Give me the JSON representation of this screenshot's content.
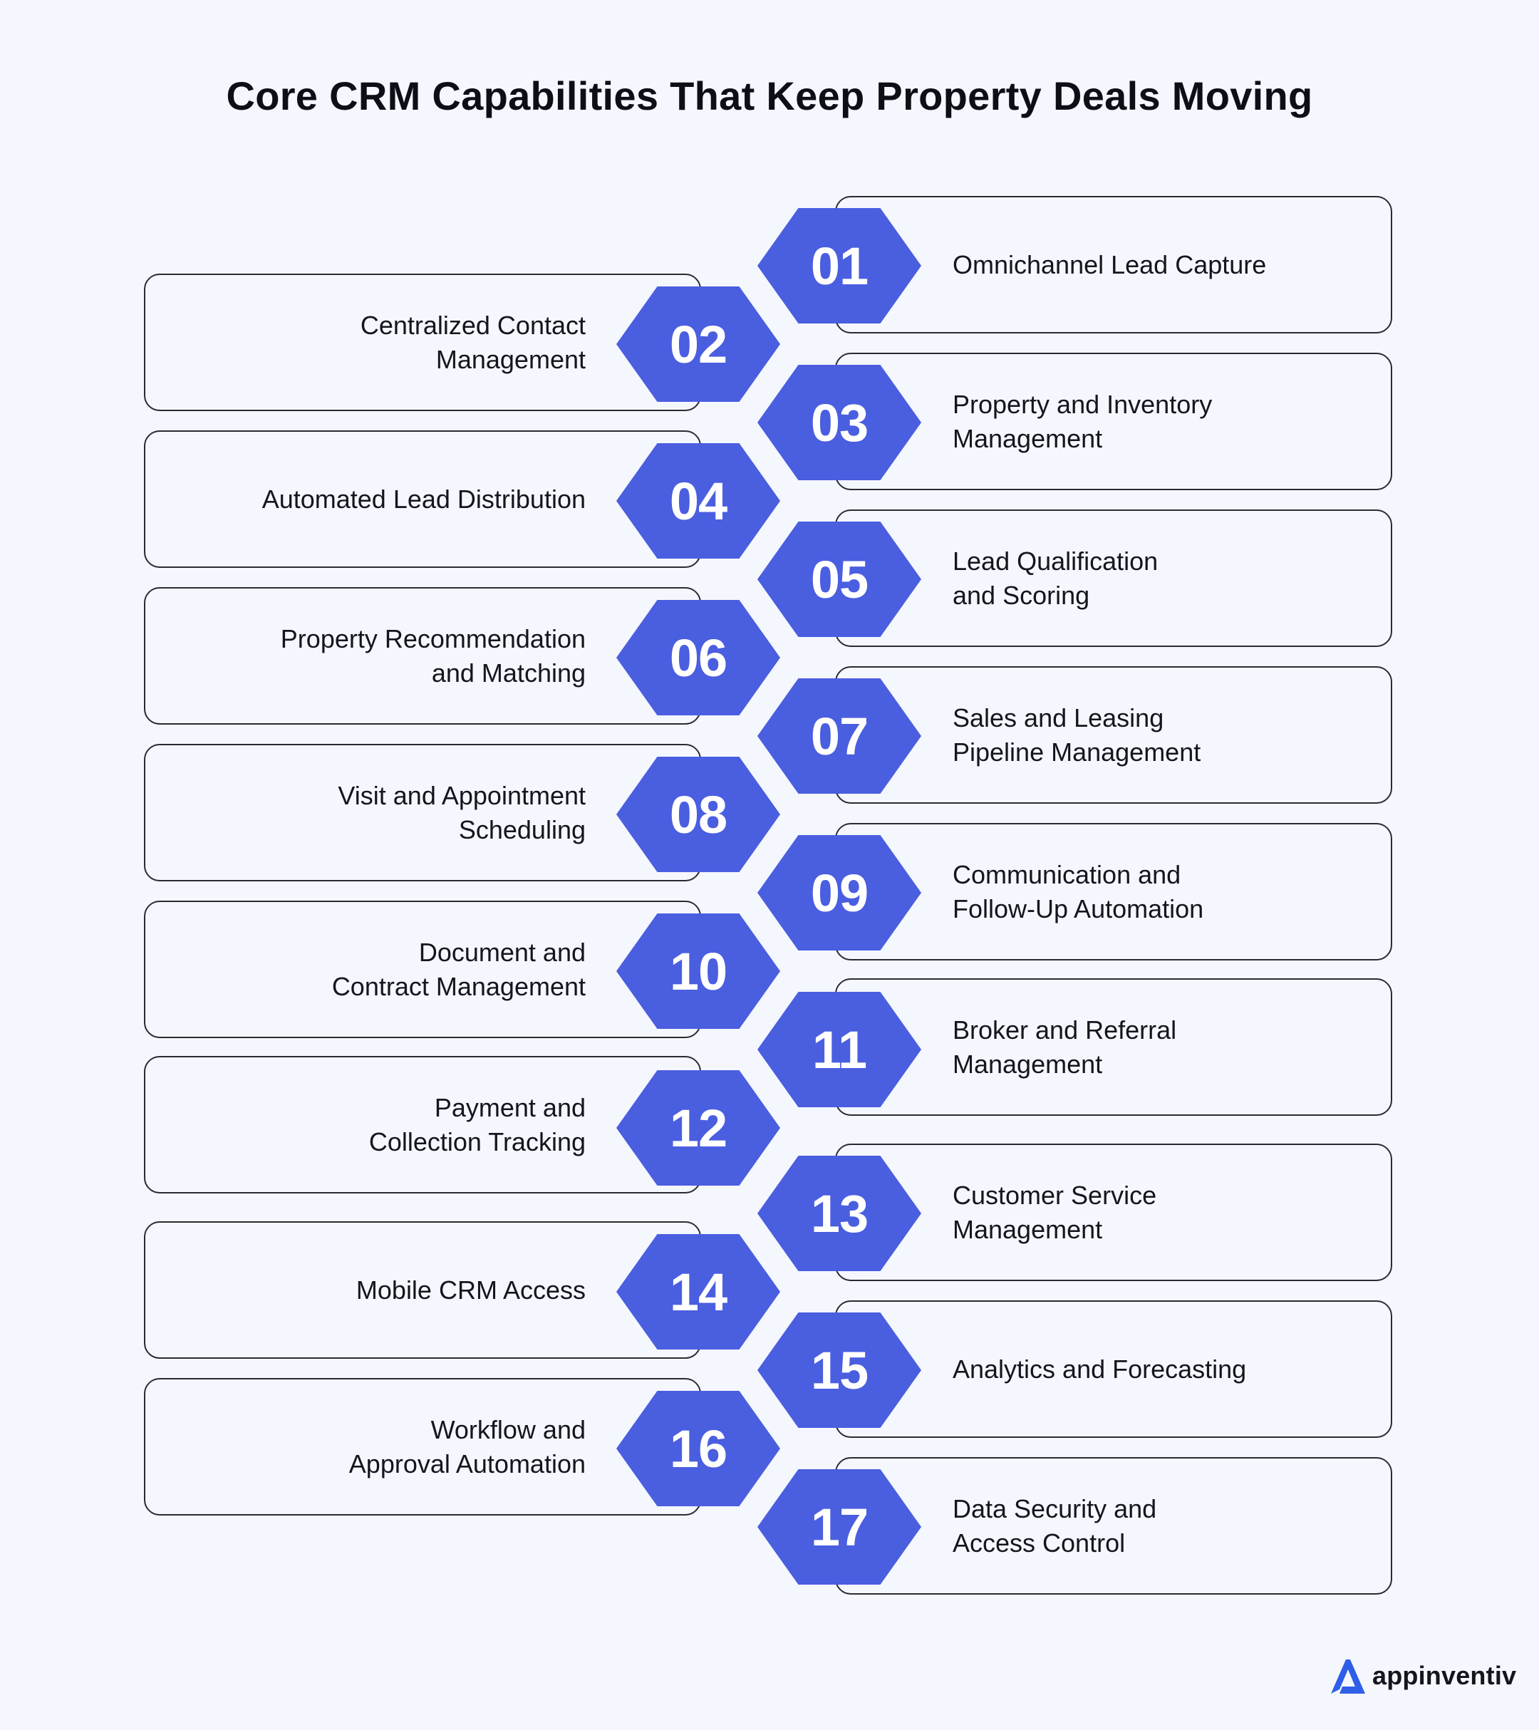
{
  "title": "Core CRM Capabilities That Keep Property Deals Moving",
  "accent_color": "#4a5ee0",
  "items": [
    {
      "number": "01",
      "label": "Omnichannel Lead Capture",
      "side": "right"
    },
    {
      "number": "02",
      "label": "Centralized Contact\nManagement",
      "side": "left"
    },
    {
      "number": "03",
      "label": "Property and Inventory\nManagement",
      "side": "right"
    },
    {
      "number": "04",
      "label": "Automated Lead Distribution",
      "side": "left"
    },
    {
      "number": "05",
      "label": "Lead Qualification\nand Scoring",
      "side": "right"
    },
    {
      "number": "06",
      "label": "Property Recommendation\nand Matching",
      "side": "left"
    },
    {
      "number": "07",
      "label": "Sales and Leasing\nPipeline Management",
      "side": "right"
    },
    {
      "number": "08",
      "label": "Visit and Appointment\nScheduling",
      "side": "left"
    },
    {
      "number": "09",
      "label": "Communication and\nFollow-Up Automation",
      "side": "right"
    },
    {
      "number": "10",
      "label": "Document and\nContract Management",
      "side": "left"
    },
    {
      "number": "11",
      "label": "Broker and Referral\nManagement",
      "side": "right"
    },
    {
      "number": "12",
      "label": "Payment and\nCollection Tracking",
      "side": "left"
    },
    {
      "number": "13",
      "label": "Customer Service\nManagement",
      "side": "right"
    },
    {
      "number": "14",
      "label": "Mobile CRM Access",
      "side": "left"
    },
    {
      "number": "15",
      "label": "Analytics and Forecasting",
      "side": "right"
    },
    {
      "number": "16",
      "label": "Workflow and\nApproval Automation",
      "side": "left"
    },
    {
      "number": "17",
      "label": "Data Security and\nAccess Control",
      "side": "right"
    }
  ],
  "logo": {
    "text": "appinventiv"
  }
}
